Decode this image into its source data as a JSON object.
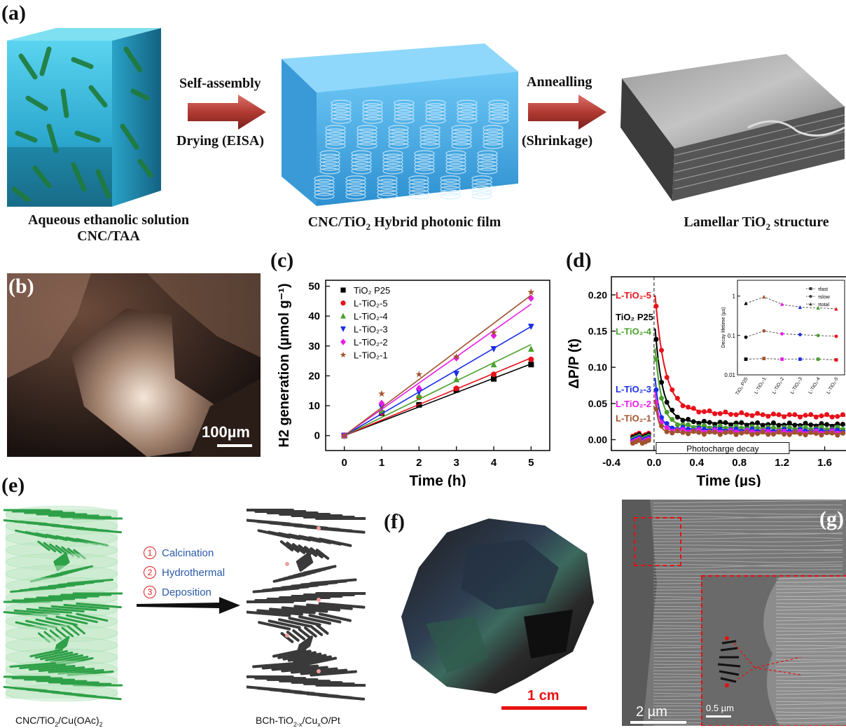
{
  "panels": {
    "a": {
      "label": "(a)",
      "arrow1_top": "Self-assembly",
      "arrow1_bottom": "Drying (EISA)",
      "arrow2_top": "Annealling",
      "arrow2_bottom": "(Shrinkage)",
      "caption1_line1": "Aqueous ethanolic solution",
      "caption1_line2": "CNC/TAA",
      "caption2_pre": "CNC/TiO",
      "caption2_sub": "2",
      "caption2_post": " Hybrid photonic film",
      "caption3_pre": "Lamellar TiO",
      "caption3_sub": "2",
      "caption3_post": " structure"
    },
    "b": {
      "label": "(b)",
      "scale_bar": "100µm"
    },
    "c": {
      "label": "(c)"
    },
    "d": {
      "label": "(d)",
      "annotation": "Photocharge decay"
    },
    "e": {
      "label": "(e)",
      "steps": [
        "Calcination",
        "Hydrothermal",
        "Deposition"
      ],
      "step_numbers": [
        "1",
        "2",
        "3"
      ],
      "left_caption_pre": "CNC/TiO",
      "left_caption_sub1": "2",
      "left_caption_mid": "/Cu(OAc)",
      "left_caption_sub2": "2",
      "right_caption_pre": "BCh-TiO",
      "right_caption_sub": "2-x",
      "right_caption_post": "/Cu",
      "right_caption_sub2": "x",
      "right_caption_end": "O/Pt"
    },
    "f": {
      "label": "(f)",
      "scale_bar": "1 cm"
    },
    "g": {
      "label": "(g)",
      "scale_bar": "2 µm",
      "inset_scale_bar": "0.5 µm"
    }
  },
  "chart_c": {
    "type": "scatter",
    "xlabel": "Time (h)",
    "ylabel": "H2 generation (µmol g⁻¹)",
    "xlim": [
      -0.5,
      5.5
    ],
    "ylim": [
      -5,
      52
    ],
    "xticks": [
      0,
      1,
      2,
      3,
      4,
      5
    ],
    "yticks": [
      0,
      10,
      20,
      30,
      40,
      50
    ],
    "x": [
      0,
      1,
      2,
      3,
      4,
      5
    ],
    "series": [
      {
        "name": "TiO₂ P25",
        "color": "#000000",
        "marker": "square",
        "values": [
          0,
          7.5,
          10.3,
          15.3,
          19,
          23.8
        ],
        "slope": 4.8
      },
      {
        "name": "L-TiO₂-5",
        "color": "#e8101a",
        "marker": "circle",
        "values": [
          0,
          7.6,
          12.8,
          15.8,
          20.5,
          25.5
        ],
        "slope": 5.2
      },
      {
        "name": "L-TiO₂-4",
        "color": "#4aa02c",
        "marker": "triangle-up",
        "values": [
          0,
          8.4,
          13.5,
          18.8,
          23.8,
          29
        ],
        "slope": 6.1
      },
      {
        "name": "L-TiO₂-3",
        "color": "#1a2ee8",
        "marker": "triangle-down",
        "values": [
          0,
          9.5,
          14.6,
          20.7,
          29,
          36.5
        ],
        "slope": 7.3
      },
      {
        "name": "L-TiO₂-2",
        "color": "#e81ae8",
        "marker": "diamond",
        "values": [
          0,
          10.8,
          15.8,
          26,
          33.5,
          46
        ],
        "slope": 8.8
      },
      {
        "name": "L-TiO₂-1",
        "color": "#a0522d",
        "marker": "star",
        "values": [
          0,
          14,
          20.5,
          26.4,
          34.5,
          48
        ],
        "slope": 9.4
      }
    ]
  },
  "chart_d": {
    "type": "scatter",
    "xlabel": "Time (µs)",
    "ylabel": "ΔP/P (t)",
    "xlim": [
      -0.4,
      1.8
    ],
    "ylim": [
      -0.015,
      0.225
    ],
    "xticks": [
      "-0.4",
      "0.0",
      "0.4",
      "0.8",
      "1.2",
      "1.6"
    ],
    "yticks": [
      "0.00",
      "0.05",
      "0.10",
      "0.15",
      "0.20"
    ],
    "series_labels": [
      {
        "text": "L-TiO₂-5",
        "color": "#e8101a",
        "y": 0.2
      },
      {
        "text": "TiO₂ P25",
        "color": "#000000",
        "y": 0.17
      },
      {
        "text": "L-TiO₂-4",
        "color": "#4aa02c",
        "y": 0.15
      },
      {
        "text": "L-TiO₂-3",
        "color": "#1a2ee8",
        "y": 0.07
      },
      {
        "text": "L-TiO₂-2",
        "color": "#e81ae8",
        "y": 0.05
      },
      {
        "text": "L-TiO₂-1",
        "color": "#a0522d",
        "y": 0.03
      }
    ],
    "decay_series": [
      {
        "color": "#e8101a",
        "amp": 0.205,
        "tau": 0.09,
        "floor": 0.032
      },
      {
        "color": "#000000",
        "amp": 0.165,
        "tau": 0.07,
        "floor": 0.02
      },
      {
        "color": "#4aa02c",
        "amp": 0.14,
        "tau": 0.06,
        "floor": 0.015
      },
      {
        "color": "#1a2ee8",
        "amp": 0.1,
        "tau": 0.04,
        "floor": 0.012
      },
      {
        "color": "#e81ae8",
        "amp": 0.08,
        "tau": 0.035,
        "floor": 0.01
      },
      {
        "color": "#a0522d",
        "amp": 0.07,
        "tau": 0.03,
        "floor": 0.008
      }
    ],
    "inset": {
      "ylabel": "Decay lifetime (µs)",
      "yticks": [
        "0.01",
        "0.1",
        "1"
      ],
      "categories": [
        "TiO₂ P25",
        "L-TiO₂-1",
        "L-TiO₂-2",
        "L-TiO₂-3",
        "L-TiO₂-4",
        "L-TiO₂-5"
      ],
      "legend": [
        "τfast",
        "τslow",
        "τtotal"
      ],
      "colors": [
        "#000000",
        "#a0522d",
        "#e81ae8",
        "#1a2ee8",
        "#4aa02c",
        "#e8101a"
      ],
      "series": [
        {
          "name": "τfast",
          "marker": "square",
          "values": [
            0.025,
            0.026,
            0.025,
            0.025,
            0.025,
            0.024
          ]
        },
        {
          "name": "τslow",
          "marker": "circle",
          "values": [
            0.09,
            0.13,
            0.11,
            0.105,
            0.1,
            0.095
          ]
        },
        {
          "name": "τtotal",
          "marker": "triangle",
          "values": [
            0.65,
            0.95,
            0.62,
            0.52,
            0.5,
            0.47
          ]
        }
      ]
    }
  }
}
